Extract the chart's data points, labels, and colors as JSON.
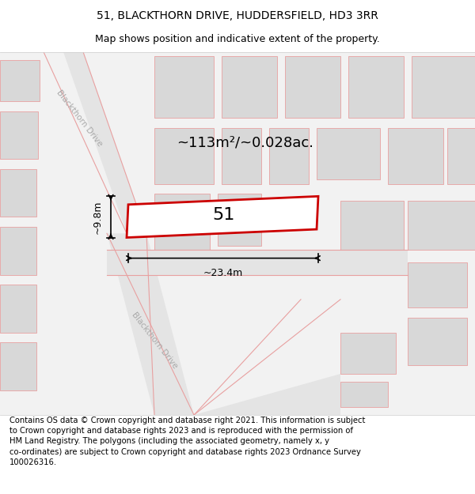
{
  "title_line1": "51, BLACKTHORN DRIVE, HUDDERSFIELD, HD3 3RR",
  "title_line2": "Map shows position and indicative extent of the property.",
  "footer_text": "Contains OS data © Crown copyright and database right 2021. This information is subject to Crown copyright and database rights 2023 and is reproduced with the permission of HM Land Registry. The polygons (including the associated geometry, namely x, y co-ordinates) are subject to Crown copyright and database rights 2023 Ordnance Survey 100026316.",
  "area_label": "~113m²/~0.028ac.",
  "width_label": "~23.4m",
  "height_label": "~9.8m",
  "number_label": "51",
  "map_bg": "#f2f2f2",
  "plot_fill": "#ffffff",
  "plot_edge": "#cc0000",
  "road_fill": "#e8e8e8",
  "bld_fill": "#d8d8d8",
  "bld_edge": "#bbbbbb",
  "road_line_color": "#e8a0a0",
  "dim_line_color": "#000000",
  "road_label_color": "#aaaaaa",
  "title_fontsize": 10,
  "subtitle_fontsize": 9,
  "footer_fontsize": 7.2,
  "area_fontsize": 13,
  "number_fontsize": 16,
  "dim_fontsize": 9,
  "road_label_fontsize": 7.5
}
